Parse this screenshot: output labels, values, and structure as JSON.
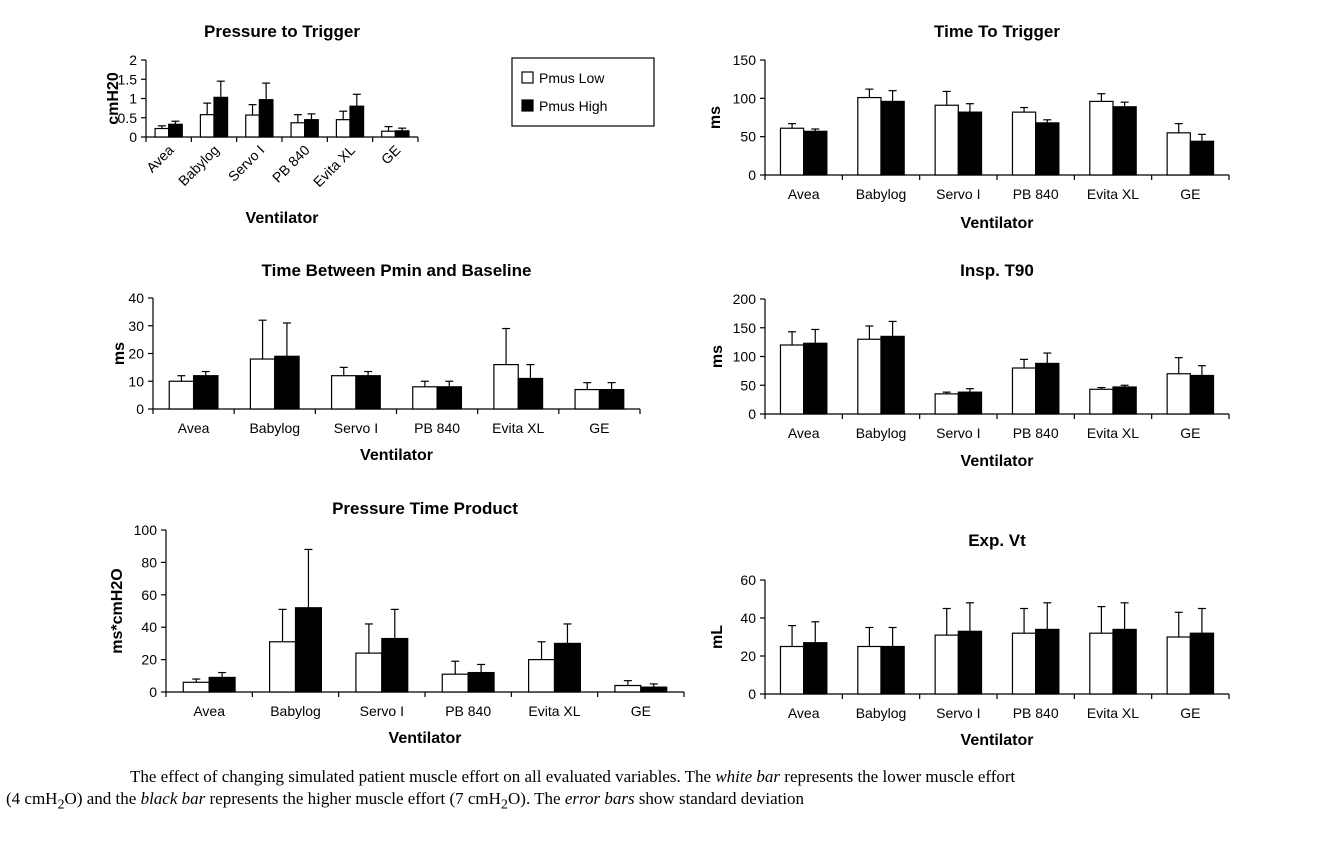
{
  "caption": {
    "p1": "The effect of changing simulated patient muscle effort on all evaluated variables. The ",
    "e1": "white bar",
    "p2": " represents the lower muscle effort",
    "p3": "(4 cmH",
    "s1": "2",
    "p4": "O) and the ",
    "e2": "black bar",
    "p5": " represents the higher muscle effort (7 cmH",
    "s2": "2",
    "p6": "O). The ",
    "e3": "error bars",
    "p7": " show standard deviation"
  },
  "legend": [
    "Pmus Low",
    "Pmus High"
  ],
  "colors": {
    "low": "#ffffff",
    "high": "#000000",
    "stroke": "#000000"
  },
  "chart_data": [
    {
      "type": "bar",
      "title": "Pressure to Trigger",
      "xlabel": "Ventilator",
      "ylabel": "cmH20",
      "ylim": [
        0,
        2
      ],
      "yticks": [
        "0",
        "0.5",
        "1",
        "1.5",
        "2"
      ],
      "categories": [
        "Avea",
        "Babylog",
        "Servo I",
        "PB 840",
        "Evita XL",
        "GE"
      ],
      "rotated_labels": true,
      "series": [
        {
          "name": "Pmus Low",
          "values": [
            0.22,
            0.58,
            0.57,
            0.37,
            0.45,
            0.15
          ],
          "err": [
            0.07,
            0.3,
            0.27,
            0.21,
            0.22,
            0.12
          ]
        },
        {
          "name": "Pmus High",
          "values": [
            0.33,
            1.03,
            0.97,
            0.45,
            0.8,
            0.16
          ],
          "err": [
            0.08,
            0.42,
            0.43,
            0.15,
            0.31,
            0.07
          ]
        }
      ]
    },
    {
      "type": "bar",
      "title": "Time To Trigger",
      "xlabel": "Ventilator",
      "ylabel": "ms",
      "ylim": [
        0,
        150
      ],
      "yticks": [
        "0",
        "50",
        "100",
        "150"
      ],
      "categories": [
        "Avea",
        "Babylog",
        "Servo I",
        "PB 840",
        "Evita XL",
        "GE"
      ],
      "series": [
        {
          "name": "Pmus Low",
          "values": [
            61,
            101,
            91,
            82,
            96,
            55
          ],
          "err": [
            6,
            11,
            18,
            6,
            10,
            12
          ]
        },
        {
          "name": "Pmus High",
          "values": [
            57,
            96,
            82,
            68,
            89,
            44
          ],
          "err": [
            3,
            14,
            11,
            4,
            6,
            9
          ]
        }
      ]
    },
    {
      "type": "bar",
      "title": "Time Between Pmin and Baseline",
      "xlabel": "Ventilator",
      "ylabel": "ms",
      "ylim": [
        0,
        40
      ],
      "yticks": [
        "0",
        "10",
        "20",
        "30",
        "40"
      ],
      "categories": [
        "Avea",
        "Babylog",
        "Servo I",
        "PB 840",
        "Evita XL",
        "GE"
      ],
      "series": [
        {
          "name": "Pmus Low",
          "values": [
            10,
            18,
            12,
            8,
            16,
            7
          ],
          "err": [
            2,
            14,
            3,
            2,
            13,
            2.5
          ]
        },
        {
          "name": "Pmus High",
          "values": [
            12,
            19,
            12,
            8,
            11,
            7
          ],
          "err": [
            1.5,
            12,
            1.5,
            2,
            5,
            2.5
          ]
        }
      ]
    },
    {
      "type": "bar",
      "title": "Insp. T90",
      "xlabel": "Ventilator",
      "ylabel": "ms",
      "ylim": [
        0,
        200
      ],
      "yticks": [
        "0",
        "50",
        "100",
        "150",
        "200"
      ],
      "categories": [
        "Avea",
        "Babylog",
        "Servo I",
        "PB 840",
        "Evita XL",
        "GE"
      ],
      "series": [
        {
          "name": "Pmus Low",
          "values": [
            120,
            130,
            35,
            80,
            43,
            70
          ],
          "err": [
            23,
            23,
            3,
            15,
            3,
            28
          ]
        },
        {
          "name": "Pmus High",
          "values": [
            123,
            135,
            38,
            88,
            47,
            67
          ],
          "err": [
            24,
            26,
            6,
            18,
            3,
            17
          ]
        }
      ]
    },
    {
      "type": "bar",
      "title": "Pressure Time Product",
      "xlabel": "Ventilator",
      "ylabel": "ms*cmH2O",
      "ylim": [
        0,
        100
      ],
      "yticks": [
        "0",
        "20",
        "40",
        "60",
        "80",
        "100"
      ],
      "categories": [
        "Avea",
        "Babylog",
        "Servo I",
        "PB 840",
        "Evita XL",
        "GE"
      ],
      "series": [
        {
          "name": "Pmus Low",
          "values": [
            6,
            31,
            24,
            11,
            20,
            4
          ],
          "err": [
            2,
            20,
            18,
            8,
            11,
            3
          ]
        },
        {
          "name": "Pmus High",
          "values": [
            9,
            52,
            33,
            12,
            30,
            3
          ],
          "err": [
            3,
            36,
            18,
            5,
            12,
            2
          ]
        }
      ]
    },
    {
      "type": "bar",
      "title": "Exp. Vt",
      "xlabel": "Ventilator",
      "ylabel": "mL",
      "ylim": [
        0,
        60
      ],
      "yticks": [
        "0",
        "20",
        "40",
        "60"
      ],
      "categories": [
        "Avea",
        "Babylog",
        "Servo I",
        "PB 840",
        "Evita XL",
        "GE"
      ],
      "series": [
        {
          "name": "Pmus Low",
          "values": [
            25,
            25,
            31,
            32,
            32,
            30
          ],
          "err": [
            11,
            10,
            14,
            13,
            14,
            13
          ]
        },
        {
          "name": "Pmus High",
          "values": [
            27,
            25,
            33,
            34,
            34,
            32
          ],
          "err": [
            11,
            10,
            15,
            14,
            14,
            13
          ]
        }
      ]
    }
  ]
}
